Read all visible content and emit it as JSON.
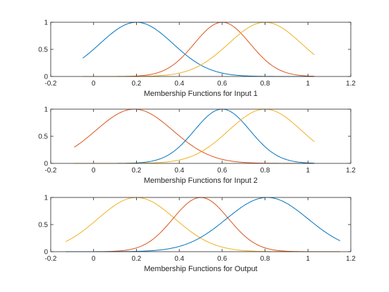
{
  "chart_data": [
    {
      "type": "line",
      "title": "",
      "xlabel": "Membership Functions for Input 1",
      "ylabel": "",
      "xlim": [
        -0.2,
        1.2
      ],
      "ylim": [
        0,
        1
      ],
      "xticks": [
        -0.2,
        0,
        0.2,
        0.4,
        0.6,
        0.8,
        1,
        1.2
      ],
      "xtick_labels": [
        "-0.2",
        "0",
        "0.2",
        "0.4",
        "0.6",
        "0.8",
        "1",
        "1.2"
      ],
      "yticks": [
        0,
        0.5,
        1
      ],
      "ytick_labels": [
        "0",
        "0.5",
        "1"
      ],
      "grid": false,
      "legend": "none",
      "series": [
        {
          "color": "#0072BD",
          "shape": "gaussian",
          "mean": 0.2,
          "sigma": 0.17,
          "x_range": [
            -0.05,
            1.03
          ]
        },
        {
          "color": "#D95319",
          "shape": "gaussian",
          "mean": 0.6,
          "sigma": 0.13,
          "x_range": [
            -0.05,
            1.03
          ]
        },
        {
          "color": "#EDB120",
          "shape": "gaussian",
          "mean": 0.8,
          "sigma": 0.17,
          "x_range": [
            -0.05,
            1.03
          ]
        }
      ]
    },
    {
      "type": "line",
      "title": "",
      "xlabel": "Membership Functions for Input 2",
      "ylabel": "",
      "xlim": [
        -0.2,
        1.2
      ],
      "ylim": [
        0,
        1
      ],
      "xticks": [
        -0.2,
        0,
        0.2,
        0.4,
        0.6,
        0.8,
        1,
        1.2
      ],
      "xtick_labels": [
        "-0.2",
        "0",
        "0.2",
        "0.4",
        "0.6",
        "0.8",
        "1",
        "1.2"
      ],
      "yticks": [
        0,
        0.5,
        1
      ],
      "ytick_labels": [
        "0",
        "0.5",
        "1"
      ],
      "grid": false,
      "legend": "none",
      "series": [
        {
          "color": "#D95319",
          "shape": "gaussian",
          "mean": 0.19,
          "sigma": 0.18,
          "x_range": [
            -0.09,
            1.03
          ]
        },
        {
          "color": "#0072BD",
          "shape": "gaussian",
          "mean": 0.6,
          "sigma": 0.13,
          "x_range": [
            -0.09,
            1.03
          ]
        },
        {
          "color": "#EDB120",
          "shape": "gaussian",
          "mean": 0.8,
          "sigma": 0.17,
          "x_range": [
            -0.09,
            1.03
          ]
        }
      ]
    },
    {
      "type": "line",
      "title": "",
      "xlabel": "Membership Functions for Output",
      "ylabel": "",
      "xlim": [
        -0.2,
        1.2
      ],
      "ylim": [
        0,
        1
      ],
      "xticks": [
        -0.2,
        0,
        0.2,
        0.4,
        0.6,
        0.8,
        1,
        1.2
      ],
      "xtick_labels": [
        "-0.2",
        "0",
        "0.2",
        "0.4",
        "0.6",
        "0.8",
        "1",
        "1.2"
      ],
      "yticks": [
        0,
        0.5,
        1
      ],
      "ytick_labels": [
        "0",
        "0.5",
        "1"
      ],
      "grid": false,
      "legend": "none",
      "series": [
        {
          "color": "#EDB120",
          "shape": "gaussian",
          "mean": 0.2,
          "sigma": 0.18,
          "x_range": [
            -0.13,
            1.15
          ]
        },
        {
          "color": "#D95319",
          "shape": "gaussian",
          "mean": 0.5,
          "sigma": 0.13,
          "x_range": [
            -0.13,
            1.15
          ]
        },
        {
          "color": "#0072BD",
          "shape": "gaussian",
          "mean": 0.81,
          "sigma": 0.19,
          "x_range": [
            -0.13,
            1.15
          ]
        }
      ]
    }
  ]
}
